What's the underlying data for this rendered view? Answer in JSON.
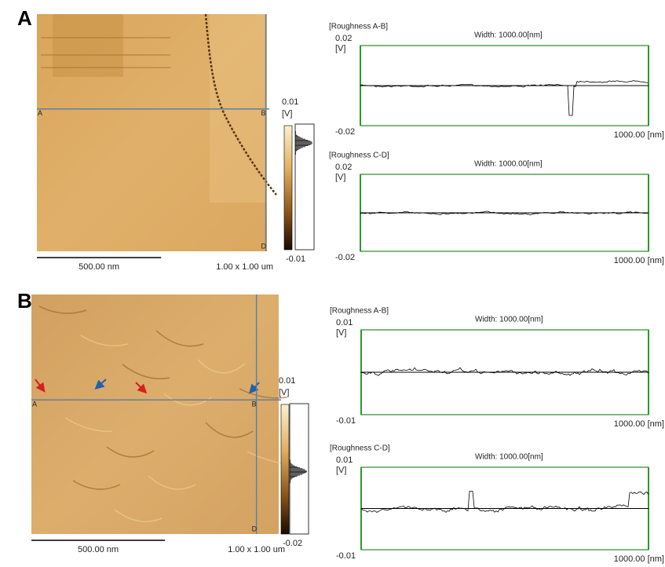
{
  "panels": [
    {
      "label": "A",
      "image": {
        "scale_bar": "500.00 nm",
        "size": "1.00 x 1.00 um",
        "markers": [
          "A",
          "B",
          "D"
        ],
        "colorbar": {
          "max": "0.01",
          "unit": "[V]",
          "min": "-0.01"
        }
      },
      "profiles": [
        {
          "title": "[Roughness A-B]",
          "width": "Width: 1000.00[nm]",
          "ymax": "0.02",
          "unit": "[V]",
          "ymin": "-0.02",
          "xend": "1000.00 [nm]"
        },
        {
          "title": "[Roughness C-D]",
          "width": "Width: 1000.00[nm]",
          "ymax": "0.02",
          "unit": "[V]",
          "ymin": "-0.02",
          "xend": "1000.00 [nm]"
        }
      ]
    },
    {
      "label": "B",
      "image": {
        "scale_bar": "500.00 nm",
        "size": "1.00 x 1.00 um",
        "markers": [
          "A",
          "B",
          "D"
        ],
        "colorbar": {
          "max": "0.01",
          "unit": "[V]",
          "min": "-0.02"
        }
      },
      "profiles": [
        {
          "title": "[Roughness A-B]",
          "width": "Width: 1000.00[nm]",
          "ymax": "0.01",
          "unit": "[V]",
          "ymin": "-0.01",
          "xend": "1000.00 [nm]"
        },
        {
          "title": "[Roughness C-D]",
          "width": "Width: 1000.00[nm]",
          "ymax": "0.01",
          "unit": "[V]",
          "ymin": "-0.01",
          "xend": "1000.00 [nm]"
        }
      ]
    }
  ]
}
